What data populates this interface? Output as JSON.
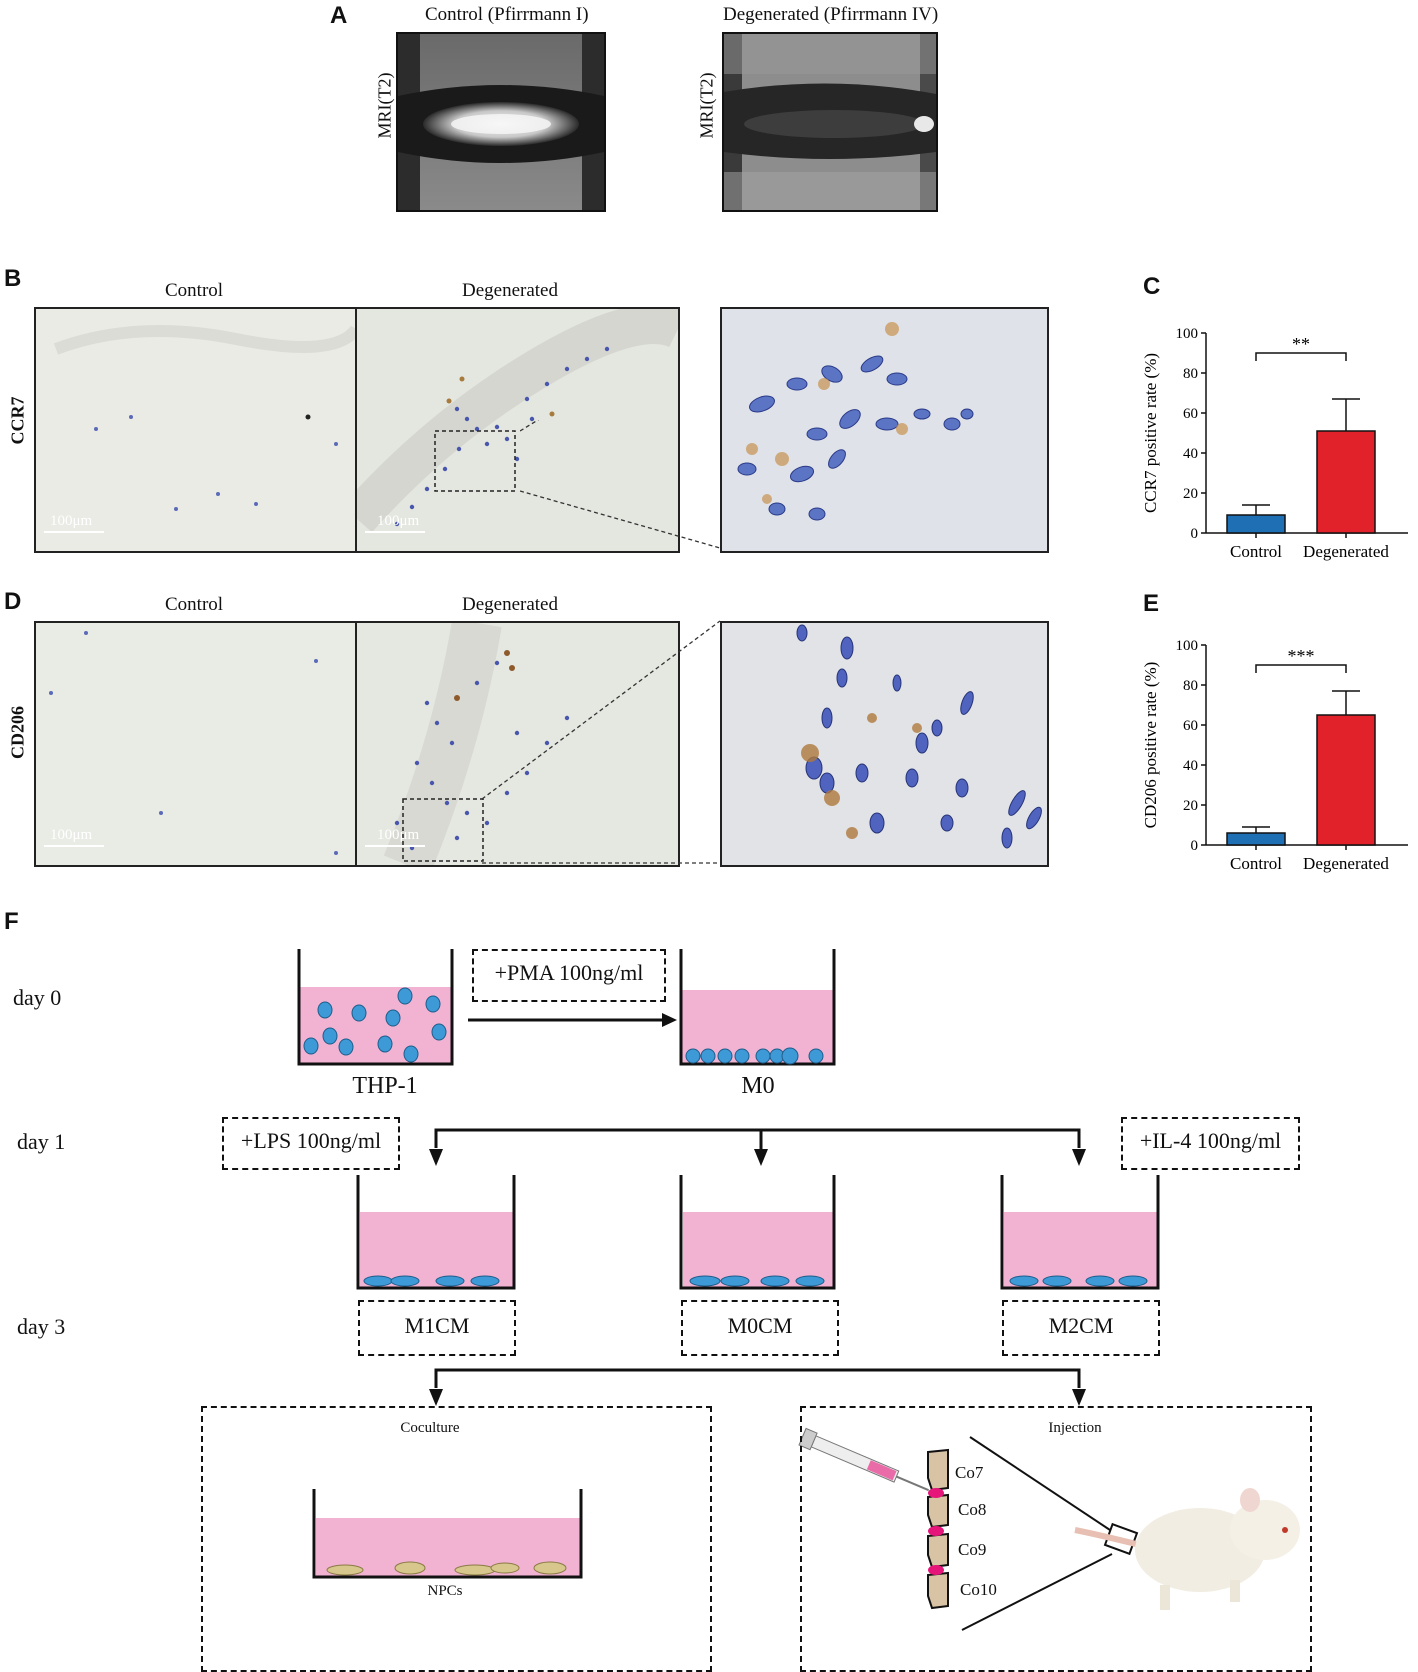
{
  "panels": {
    "a": {
      "letter": "A",
      "left_title": "Control (Pfirrmann I)",
      "right_title": "Degenerated (Pfirrmann IV)",
      "ylabel": "MRI(T2)"
    },
    "b": {
      "letter": "B",
      "row_label": "CCR7",
      "col_control": "Control",
      "col_degenerated": "Degenerated",
      "scale": "100μm"
    },
    "c": {
      "letter": "C"
    },
    "d": {
      "letter": "D",
      "row_label": "CD206",
      "col_control": "Control",
      "col_degenerated": "Degenerated",
      "scale": "100μm"
    },
    "e": {
      "letter": "E"
    },
    "f": {
      "letter": "F"
    }
  },
  "chart_data": [
    {
      "type": "bar",
      "panel": "C",
      "categories": [
        "Control",
        "Degenerated"
      ],
      "values": [
        9,
        51
      ],
      "errors": [
        5,
        16
      ],
      "colors": [
        "#1f6fb5",
        "#e2222a"
      ],
      "ylabel": "CCR7 positive rate (%)",
      "ylim": [
        0,
        100
      ],
      "yticks": [
        0,
        20,
        40,
        60,
        80,
        100
      ],
      "significance": "**"
    },
    {
      "type": "bar",
      "panel": "E",
      "categories": [
        "Control",
        "Degenerated"
      ],
      "values": [
        6,
        65
      ],
      "errors": [
        3,
        12
      ],
      "colors": [
        "#1f6fb5",
        "#e2222a"
      ],
      "ylabel": "CD206 positive rate (%)",
      "ylim": [
        0,
        100
      ],
      "yticks": [
        0,
        20,
        40,
        60,
        80,
        100
      ],
      "significance": "***"
    }
  ],
  "schematic": {
    "days": [
      "day 0",
      "day 1",
      "day 3"
    ],
    "treatments": {
      "pma": "+PMA 100ng/ml",
      "lps": "+LPS 100ng/ml",
      "il4": "+IL-4 100ng/ml"
    },
    "cells": {
      "thp1": "THP-1",
      "m0": "M0"
    },
    "media": [
      "M1CM",
      "M0CM",
      "M2CM"
    ],
    "coculture": {
      "title": "Coculture",
      "cells": "NPCs"
    },
    "injection": {
      "title": "Injection",
      "discs": [
        "Co7",
        "Co8",
        "Co9",
        "Co10"
      ]
    },
    "colors": {
      "medium": "#f2b3d3",
      "cell": "#3d9ad6",
      "npc": "#d8c78c",
      "disc": "#e6157a",
      "vertebra": "#d9c3a5"
    }
  }
}
